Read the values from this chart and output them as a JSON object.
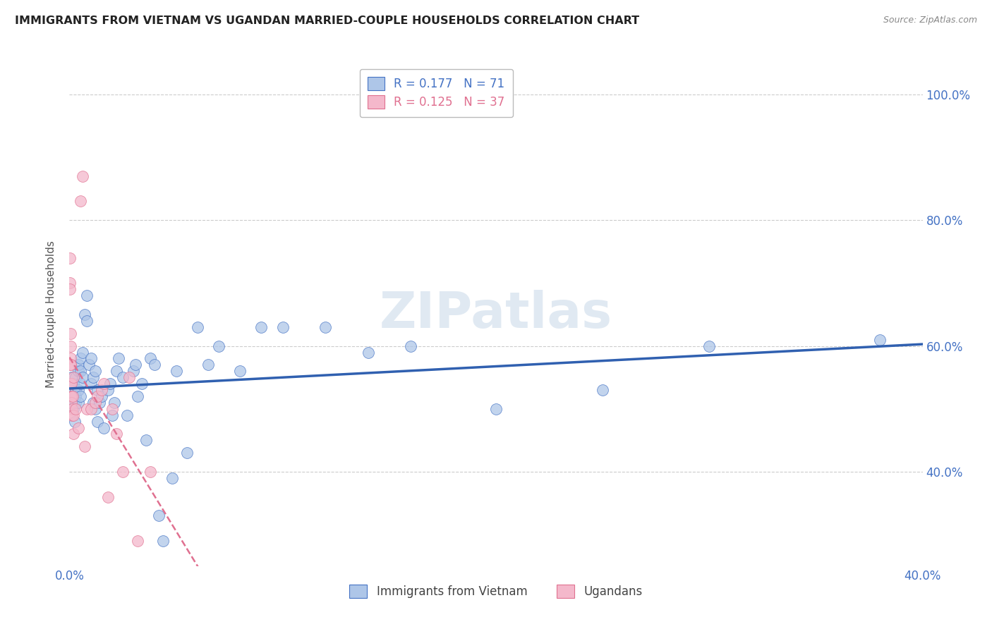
{
  "title": "IMMIGRANTS FROM VIETNAM VS UGANDAN MARRIED-COUPLE HOUSEHOLDS CORRELATION CHART",
  "source": "Source: ZipAtlas.com",
  "ylabel": "Married-couple Households",
  "vietnam_color": "#aec6e8",
  "vietnam_edge_color": "#4472c4",
  "ugandan_color": "#f4b8cb",
  "ugandan_edge_color": "#e07090",
  "vietnam_line_color": "#3060b0",
  "ugandan_line_color": "#e07090",
  "watermark": "ZIPatlas",
  "legend1_r": "R = 0.177",
  "legend1_n": "N = 71",
  "legend2_r": "R = 0.125",
  "legend2_n": "N = 37",
  "legend_bottom1": "Immigrants from Vietnam",
  "legend_bottom2": "Ugandans",
  "xlim": [
    0.0,
    0.4
  ],
  "ylim": [
    0.25,
    1.05
  ],
  "ytick_vals": [
    0.4,
    0.6,
    0.8,
    1.0
  ],
  "ytick_labels": [
    "40.0%",
    "60.0%",
    "80.0%",
    "100.0%"
  ],
  "xtick_vals": [
    0.0,
    0.05,
    0.1,
    0.15,
    0.2,
    0.25,
    0.3,
    0.35,
    0.4
  ],
  "xtick_labels": [
    "0.0%",
    "",
    "",
    "",
    "",
    "",
    "",
    "",
    "40.0%"
  ],
  "vietnam_x": [
    0.001,
    0.001,
    0.001,
    0.0015,
    0.002,
    0.002,
    0.002,
    0.002,
    0.0025,
    0.003,
    0.003,
    0.003,
    0.003,
    0.004,
    0.004,
    0.004,
    0.004,
    0.005,
    0.005,
    0.005,
    0.005,
    0.006,
    0.006,
    0.007,
    0.008,
    0.008,
    0.009,
    0.01,
    0.01,
    0.011,
    0.011,
    0.012,
    0.012,
    0.013,
    0.013,
    0.014,
    0.015,
    0.016,
    0.018,
    0.019,
    0.02,
    0.021,
    0.022,
    0.023,
    0.025,
    0.027,
    0.03,
    0.031,
    0.032,
    0.034,
    0.036,
    0.038,
    0.04,
    0.042,
    0.044,
    0.048,
    0.05,
    0.055,
    0.06,
    0.065,
    0.07,
    0.08,
    0.09,
    0.1,
    0.12,
    0.14,
    0.16,
    0.2,
    0.25,
    0.3,
    0.38
  ],
  "vietnam_y": [
    0.52,
    0.54,
    0.55,
    0.51,
    0.53,
    0.51,
    0.5,
    0.54,
    0.48,
    0.53,
    0.51,
    0.52,
    0.55,
    0.56,
    0.53,
    0.57,
    0.51,
    0.52,
    0.54,
    0.58,
    0.56,
    0.59,
    0.55,
    0.65,
    0.64,
    0.68,
    0.57,
    0.58,
    0.54,
    0.55,
    0.51,
    0.56,
    0.5,
    0.53,
    0.48,
    0.51,
    0.52,
    0.47,
    0.53,
    0.54,
    0.49,
    0.51,
    0.56,
    0.58,
    0.55,
    0.49,
    0.56,
    0.57,
    0.52,
    0.54,
    0.45,
    0.58,
    0.57,
    0.33,
    0.29,
    0.39,
    0.56,
    0.43,
    0.63,
    0.57,
    0.6,
    0.56,
    0.63,
    0.63,
    0.63,
    0.59,
    0.6,
    0.5,
    0.53,
    0.6,
    0.61
  ],
  "ugandan_x": [
    0.0002,
    0.0003,
    0.0003,
    0.0004,
    0.0004,
    0.0005,
    0.0005,
    0.0006,
    0.0006,
    0.0007,
    0.0008,
    0.001,
    0.001,
    0.0012,
    0.0013,
    0.0015,
    0.002,
    0.002,
    0.002,
    0.003,
    0.004,
    0.005,
    0.006,
    0.007,
    0.008,
    0.01,
    0.012,
    0.013,
    0.015,
    0.016,
    0.018,
    0.02,
    0.022,
    0.025,
    0.028,
    0.032,
    0.038
  ],
  "ugandan_y": [
    0.7,
    0.74,
    0.69,
    0.6,
    0.62,
    0.58,
    0.57,
    0.57,
    0.54,
    0.52,
    0.52,
    0.54,
    0.51,
    0.5,
    0.49,
    0.52,
    0.46,
    0.49,
    0.55,
    0.5,
    0.47,
    0.83,
    0.87,
    0.44,
    0.5,
    0.5,
    0.51,
    0.52,
    0.53,
    0.54,
    0.36,
    0.5,
    0.46,
    0.4,
    0.55,
    0.29,
    0.4
  ]
}
